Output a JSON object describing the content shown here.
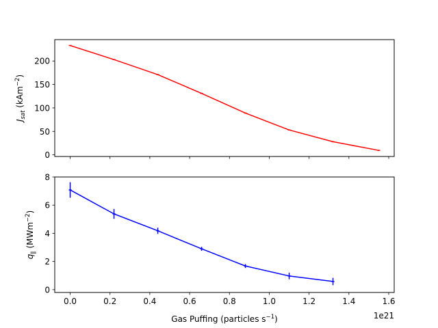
{
  "chart_data": [
    {
      "type": "line",
      "title": "",
      "ylabel_main": "J",
      "ylabel_sub": "sat",
      "ylabel_unit": " (kAm",
      "ylabel_exp": "−2",
      "ylabel_close": ")",
      "xlim": [
        -0.0775,
        1.6275
      ],
      "ylim": [
        -3.5,
        245.5
      ],
      "yticks": [
        0,
        50,
        100,
        150,
        200
      ],
      "ytick_labels": [
        "0",
        "50",
        "100",
        "150",
        "200"
      ],
      "xticks": [
        0,
        0.2,
        0.4,
        0.6,
        0.8,
        1.0,
        1.2,
        1.4,
        1.6
      ],
      "grid": false,
      "series": [
        {
          "color": "#ff0000",
          "x": [
            0,
            0.22,
            0.44,
            0.66,
            0.88,
            1.1,
            1.32,
            1.55
          ],
          "y": [
            233,
            203,
            171,
            131,
            89,
            53,
            28,
            9.5
          ],
          "yerr": [
            1,
            1,
            1,
            1,
            1,
            1,
            1,
            1
          ]
        }
      ]
    },
    {
      "type": "line",
      "title": "",
      "ylabel_main": "q",
      "ylabel_sub": "∥",
      "ylabel_unit": " (MWm",
      "ylabel_exp": "−2",
      "ylabel_close": ")",
      "xlabel_main": "Gas Puffing (particles s",
      "xlabel_exp": "−1",
      "xlabel_close": ")",
      "offset_text": "1e21",
      "xlim": [
        -0.0775,
        1.6275
      ],
      "ylim": [
        -0.2,
        8.0
      ],
      "yticks": [
        0,
        2,
        4,
        6,
        8
      ],
      "ytick_labels": [
        "0",
        "2",
        "4",
        "6",
        "8"
      ],
      "xticks": [
        0,
        0.2,
        0.4,
        0.6,
        0.8,
        1.0,
        1.2,
        1.4,
        1.6
      ],
      "xtick_labels": [
        "0.0",
        "0.2",
        "0.4",
        "0.6",
        "0.8",
        "1.0",
        "1.2",
        "1.4",
        "1.6"
      ],
      "grid": false,
      "series": [
        {
          "color": "#0000ff",
          "x": [
            0,
            0.22,
            0.44,
            0.66,
            0.88,
            1.1,
            1.32
          ],
          "y": [
            7.08,
            5.38,
            4.18,
            2.9,
            1.68,
            0.97,
            0.58
          ],
          "yerr": [
            0.55,
            0.35,
            0.22,
            0.14,
            0.14,
            0.23,
            0.26
          ]
        }
      ]
    }
  ]
}
